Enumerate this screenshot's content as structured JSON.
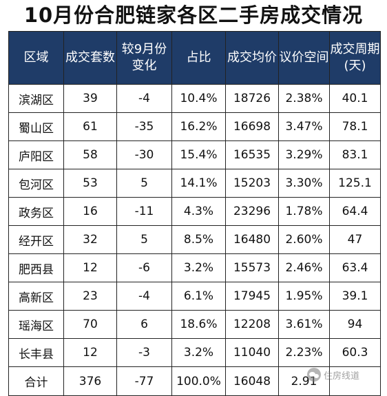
{
  "title": "10月份合肥链家各区二手房成交情况",
  "table": {
    "headers": [
      "区域",
      "成交套数",
      "较9月份变化",
      "占比",
      "成交均价",
      "议价空间",
      "成交周期(天)"
    ],
    "rows": [
      [
        "滨湖区",
        "39",
        "-4",
        "10.4%",
        "18726",
        "2.38%",
        "40.1"
      ],
      [
        "蜀山区",
        "61",
        "-35",
        "16.2%",
        "16698",
        "3.47%",
        "78.1"
      ],
      [
        "庐阳区",
        "58",
        "-30",
        "15.4%",
        "16535",
        "3.29%",
        "83.1"
      ],
      [
        "包河区",
        "53",
        "5",
        "14.1%",
        "15203",
        "3.30%",
        "125.1"
      ],
      [
        "政务区",
        "16",
        "-11",
        "4.3%",
        "23296",
        "1.78%",
        "64.4"
      ],
      [
        "经开区",
        "32",
        "5",
        "8.5%",
        "16480",
        "2.60%",
        "47"
      ],
      [
        "肥西县",
        "12",
        "-6",
        "3.2%",
        "15573",
        "2.46%",
        "63.4"
      ],
      [
        "高新区",
        "23",
        "-4",
        "6.1%",
        "17945",
        "1.95%",
        "39.1"
      ],
      [
        "瑶海区",
        "70",
        "6",
        "18.6%",
        "12208",
        "3.61%",
        "94"
      ],
      [
        "长丰县",
        "12",
        "-3",
        "3.2%",
        "11040",
        "2.23%",
        "60.3"
      ],
      [
        "合计",
        "376",
        "-77",
        "100.0%",
        "16048",
        "2.91",
        ""
      ]
    ]
  },
  "watermark": {
    "text": "住房线道",
    "icon": "wechat-icon"
  },
  "colors": {
    "header_bg": "#1f3c68",
    "header_text": "#ffffff",
    "border": "#222222"
  }
}
